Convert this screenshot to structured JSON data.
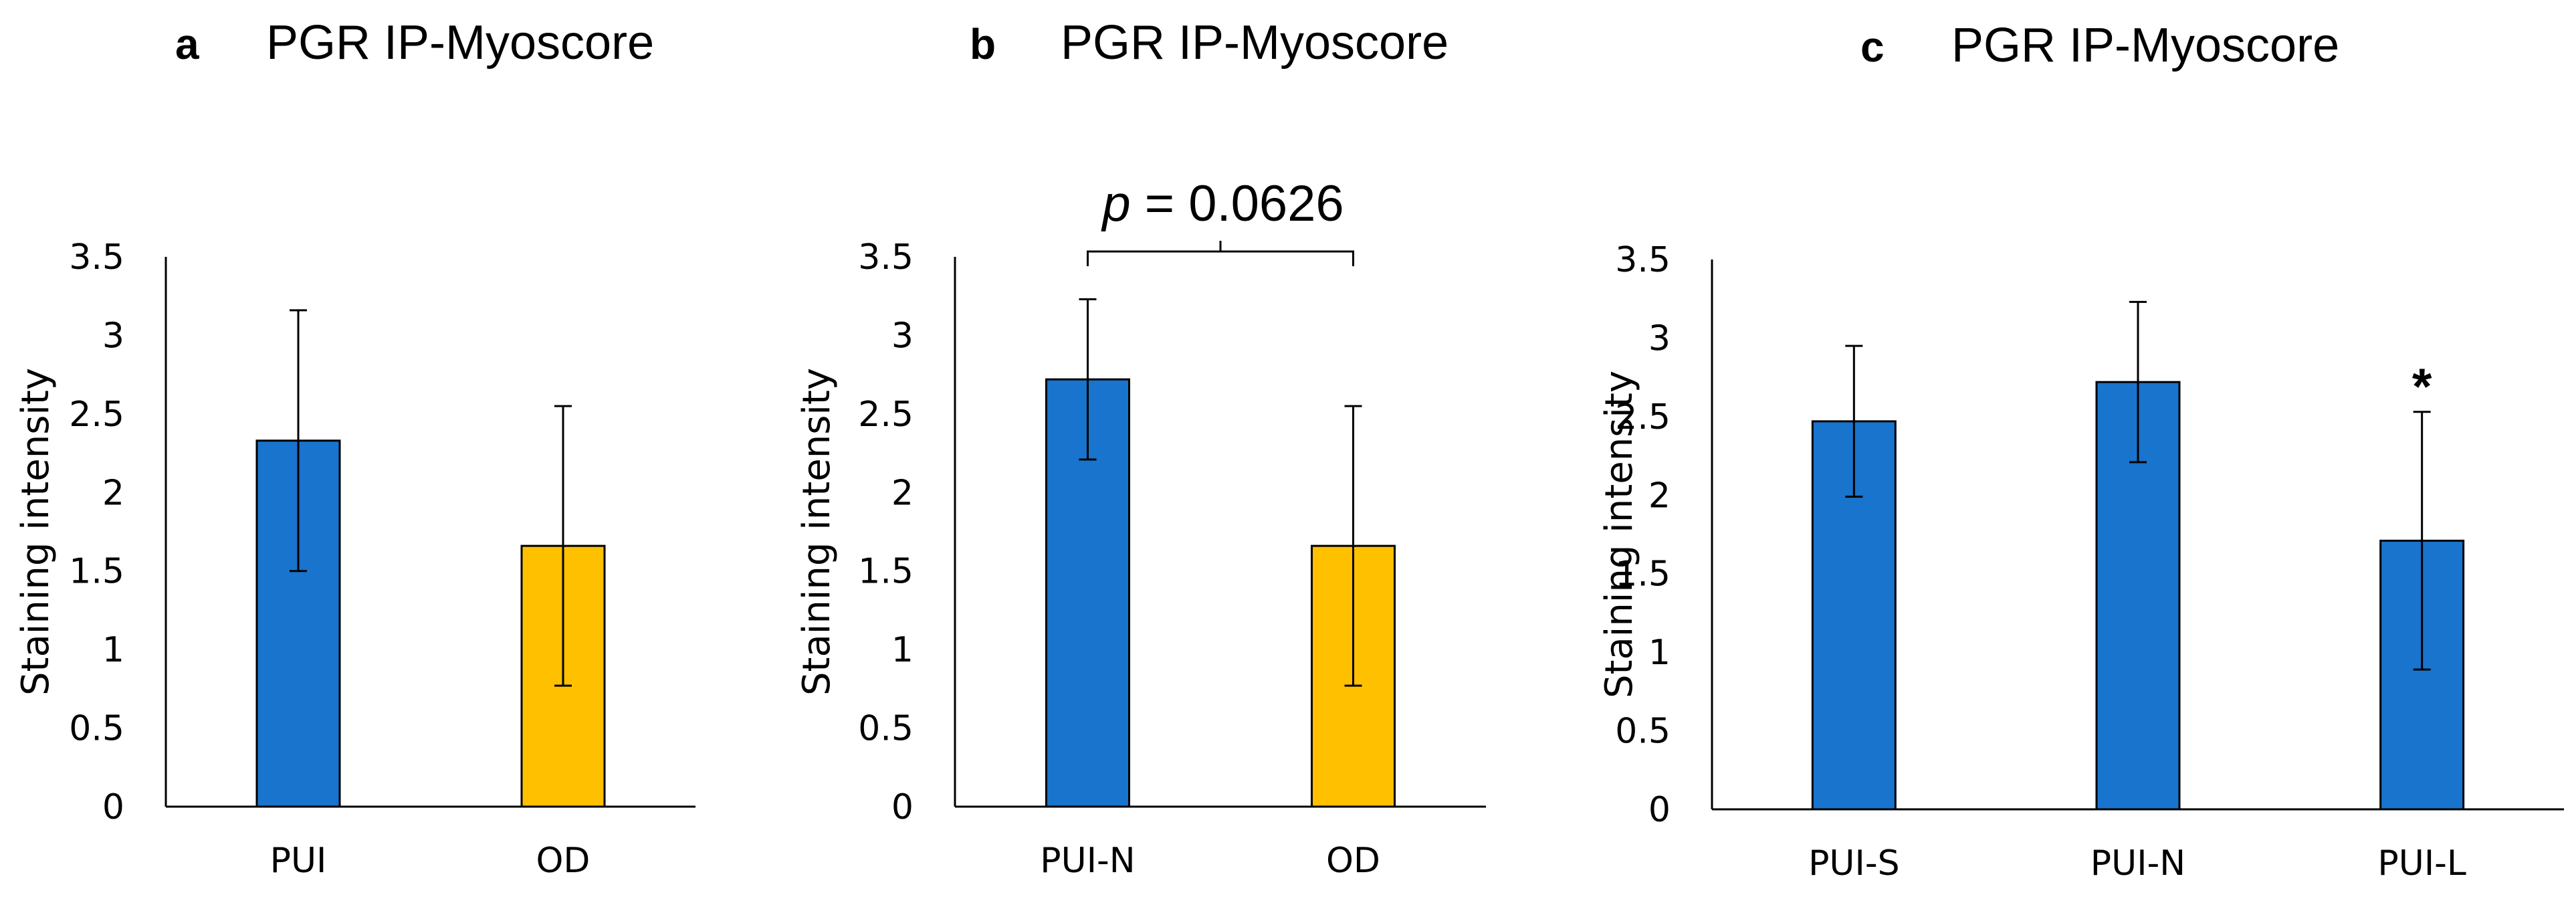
{
  "chart_data": [
    {
      "type": "bar",
      "panel": "a",
      "title": "PGR IP-Myoscore",
      "ylabel": "Staining intensity",
      "xlabel": "",
      "ylim": [
        0,
        3.5
      ],
      "yticks": [
        "0",
        "0.5",
        "1",
        "1.5",
        "2",
        "2.5",
        "3",
        "3.5"
      ],
      "categories": [
        "PUI",
        "OD"
      ],
      "values": [
        2.33,
        1.66
      ],
      "errors": [
        0.83,
        0.89
      ],
      "colors": [
        "#1874CD",
        "#FFC000"
      ],
      "grid": false,
      "annotations": []
    },
    {
      "type": "bar",
      "panel": "b",
      "title": "PGR IP-Myoscore",
      "ylabel": "Staining intensity",
      "xlabel": "",
      "ylim": [
        0,
        3.5
      ],
      "yticks": [
        "0",
        "0.5",
        "1",
        "1.5",
        "2",
        "2.5",
        "3",
        "3.5"
      ],
      "categories": [
        "PUI-N",
        "OD"
      ],
      "values": [
        2.72,
        1.66
      ],
      "errors": [
        0.51,
        0.89
      ],
      "colors": [
        "#1874CD",
        "#FFC000"
      ],
      "grid": false,
      "annotations": [
        {
          "kind": "bracket",
          "from": 0,
          "to": 1,
          "p_symbol": "p",
          "p_text": " = 0.0626"
        }
      ]
    },
    {
      "type": "bar",
      "panel": "c",
      "title": "PGR IP-Myoscore",
      "ylabel": "Staining intensity",
      "xlabel": "",
      "ylim": [
        0,
        3.5
      ],
      "yticks": [
        "0",
        "0.5",
        "1",
        "1.5",
        "2",
        "2.5",
        "3",
        "3.5"
      ],
      "categories": [
        "PUI-S",
        "PUI-N",
        "PUI-L"
      ],
      "values": [
        2.47,
        2.72,
        1.71
      ],
      "errors": [
        0.48,
        0.51,
        0.82
      ],
      "colors": [
        "#1874CD",
        "#1874CD",
        "#1874CD"
      ],
      "grid": false,
      "annotations": [
        {
          "kind": "star",
          "index": 2,
          "text": "*"
        }
      ]
    }
  ]
}
